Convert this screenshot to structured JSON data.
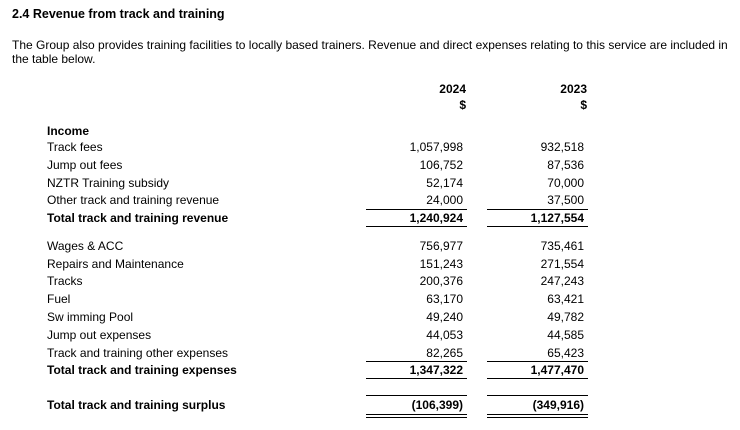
{
  "section": {
    "title": "2.4  Revenue from track and training",
    "description": "The Group also provides training facilities to locally based trainers. Revenue and direct expenses relating to this service are included in the table below."
  },
  "columns": {
    "current_year": "2024",
    "current_currency": "$",
    "prior_year": "2023",
    "prior_currency": "$"
  },
  "income": {
    "heading": "Income",
    "rows": [
      {
        "label": "Track fees",
        "v2024": "1,057,998",
        "v2023": "932,518"
      },
      {
        "label": "Jump out fees",
        "v2024": "106,752",
        "v2023": "87,536"
      },
      {
        "label": "NZTR Training subsidy",
        "v2024": "52,174",
        "v2023": "70,000"
      },
      {
        "label": "Other track and training revenue",
        "v2024": "24,000",
        "v2023": "37,500"
      }
    ],
    "total": {
      "label": "Total track and training revenue",
      "v2024": "1,240,924",
      "v2023": "1,127,554"
    }
  },
  "expenses": {
    "rows": [
      {
        "label": "Wages & ACC",
        "v2024": "756,977",
        "v2023": "735,461"
      },
      {
        "label": "Repairs and Maintenance",
        "v2024": "151,243",
        "v2023": "271,554"
      },
      {
        "label": "Tracks",
        "v2024": "200,376",
        "v2023": "247,243"
      },
      {
        "label": "Fuel",
        "v2024": "63,170",
        "v2023": "63,421"
      },
      {
        "label": "Sw imming Pool",
        "v2024": "49,240",
        "v2023": "49,782"
      },
      {
        "label": "Jump out expenses",
        "v2024": "44,053",
        "v2023": "44,585"
      },
      {
        "label": "Track and training other expenses",
        "v2024": "82,265",
        "v2023": "65,423"
      }
    ],
    "total": {
      "label": "Total track and training expenses",
      "v2024": "1,347,322",
      "v2023": "1,477,470"
    }
  },
  "surplus": {
    "label": "Total track and training surplus",
    "v2024": "(106,399)",
    "v2023": "(349,916)"
  }
}
